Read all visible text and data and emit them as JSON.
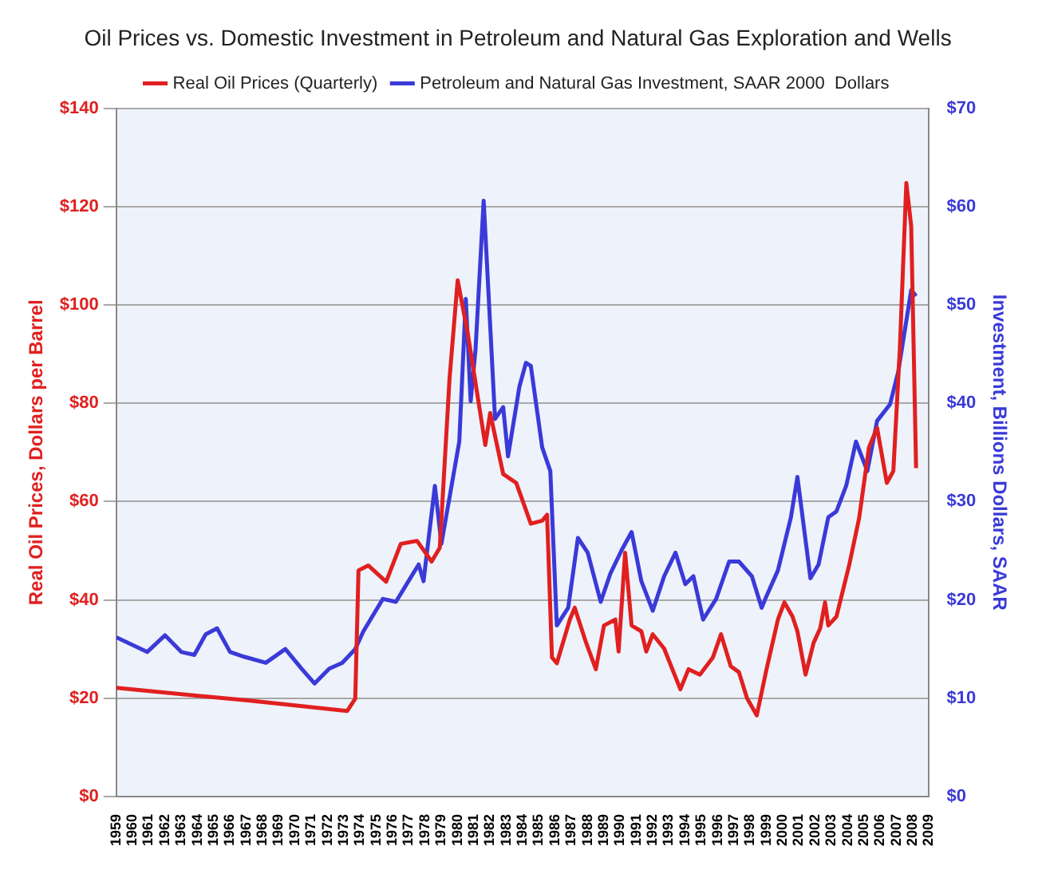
{
  "chart_data": {
    "type": "line",
    "title": "Oil Prices vs. Domestic Investment in Petroleum and Natural Gas Exploration and Wells",
    "ylabel": "Real Oil Prices, Dollars per Barrel",
    "y2label": "Investment, Billions Dollars, SAAR",
    "legend": "top",
    "grid": "y",
    "marker": "none",
    "line_style": "solid",
    "xlim": [
      1959,
      2009
    ],
    "xticks": [
      1959,
      1960,
      1961,
      1962,
      1963,
      1964,
      1965,
      1966,
      1967,
      1968,
      1969,
      1970,
      1971,
      1972,
      1973,
      1974,
      1975,
      1976,
      1977,
      1978,
      1979,
      1980,
      1981,
      1982,
      1983,
      1984,
      1985,
      1986,
      1987,
      1988,
      1989,
      1990,
      1991,
      1992,
      1993,
      1994,
      1995,
      1996,
      1997,
      1998,
      1999,
      2000,
      2001,
      2002,
      2003,
      2004,
      2005,
      2006,
      2007,
      2008,
      2009
    ],
    "ylim": [
      0,
      140
    ],
    "yticks": [
      {
        "value": 0,
        "label": "$0"
      },
      {
        "value": 20,
        "label": "$20"
      },
      {
        "value": 40,
        "label": "$40"
      },
      {
        "value": 60,
        "label": "$60"
      },
      {
        "value": 80,
        "label": "$80"
      },
      {
        "value": 100,
        "label": "$100"
      },
      {
        "value": 120,
        "label": "$120"
      },
      {
        "value": 140,
        "label": "$140"
      }
    ],
    "y2lim": [
      0,
      70
    ],
    "y2ticks": [
      {
        "value": 0,
        "label": "$0"
      },
      {
        "value": 10,
        "label": "$10"
      },
      {
        "value": 20,
        "label": "$20"
      },
      {
        "value": 30,
        "label": "$30"
      },
      {
        "value": 40,
        "label": "$40"
      },
      {
        "value": 50,
        "label": "$50"
      },
      {
        "value": 60,
        "label": "$60"
      },
      {
        "value": 70,
        "label": "$70"
      }
    ],
    "series": [
      {
        "name": "Real Oil Prices (Quarterly)",
        "color": "#e02020",
        "axis": "y",
        "x": [
          1959,
          1967.2,
          1973.2,
          1973.7,
          1973.9,
          1974.5,
          1975.6,
          1976.5,
          1977.5,
          1978.4,
          1978.9,
          1979.5,
          1980.0,
          1980.6,
          1981.7,
          1982.0,
          1982.8,
          1983.6,
          1984.5,
          1985.2,
          1985.5,
          1985.8,
          1986.1,
          1986.9,
          1987.2,
          1987.9,
          1988.5,
          1989.0,
          1989.7,
          1989.9,
          1990.3,
          1990.7,
          1991.3,
          1991.6,
          1992.0,
          1992.7,
          1993.7,
          1994.2,
          1994.9,
          1995.7,
          1996.2,
          1996.8,
          1997.3,
          1997.8,
          1998.4,
          1999.0,
          1999.7,
          2000.1,
          2000.6,
          2000.9,
          2001.4,
          2001.9,
          2002.3,
          2002.6,
          2002.8,
          2003.3,
          2004.1,
          2004.7,
          2005.3,
          2005.8,
          2006.4,
          2006.8,
          2007.2,
          2007.6,
          2007.9,
          2008.2
        ],
        "values": [
          22.1,
          19.5,
          17.4,
          19.9,
          46,
          47,
          43.7,
          51.4,
          52,
          47.8,
          50.6,
          85,
          105,
          94.6,
          71.5,
          78,
          65.6,
          63.8,
          55.5,
          56.1,
          57.3,
          28.3,
          27.1,
          36,
          38.4,
          31.3,
          25.9,
          34.8,
          36,
          29.5,
          49.6,
          34.8,
          33.6,
          29.5,
          33,
          30.1,
          21.8,
          25.9,
          24.8,
          28.3,
          33,
          26.5,
          25.3,
          20,
          16.5,
          25.9,
          36,
          39.5,
          36.6,
          33.6,
          24.8,
          31.3,
          34.2,
          39.5,
          34.8,
          36.6,
          47.3,
          56.7,
          71,
          75,
          63.8,
          66.2,
          91,
          124.8,
          116,
          66.8
        ]
      },
      {
        "name": "Petroleum and Natural Gas Investment, SAAR 2000  Dollars",
        "color": "#3a3ad8",
        "axis": "y2",
        "x": [
          1959,
          1960.9,
          1962.0,
          1963.0,
          1963.8,
          1964.5,
          1965.2,
          1966.0,
          1966.9,
          1968.2,
          1969.4,
          1970.4,
          1971.2,
          1972.1,
          1972.9,
          1973.7,
          1974.2,
          1975.4,
          1976.2,
          1977.6,
          1977.9,
          1978.6,
          1979.0,
          1980.1,
          1980.5,
          1980.8,
          1981.1,
          1981.6,
          1982.3,
          1982.8,
          1983.1,
          1983.8,
          1984.2,
          1984.5,
          1985.2,
          1985.7,
          1986.1,
          1986.8,
          1987.4,
          1988.0,
          1988.8,
          1989.4,
          1990.1,
          1990.7,
          1991.3,
          1992.0,
          1992.7,
          1993.4,
          1994.0,
          1994.5,
          1995.1,
          1995.9,
          1996.7,
          1997.3,
          1998.1,
          1998.7,
          1999.0,
          1999.7,
          2000.5,
          2000.9,
          2001.7,
          2002.2,
          2002.8,
          2003.3,
          2003.9,
          2004.5,
          2005.2,
          2005.8,
          2006.6,
          2007.1,
          2007.9,
          2008.2
        ],
        "values": [
          16.2,
          14.7,
          16.4,
          14.7,
          14.4,
          16.5,
          17.1,
          14.7,
          14.2,
          13.6,
          15,
          13,
          11.5,
          13,
          13.6,
          15,
          16.8,
          20.1,
          19.8,
          23.6,
          21.9,
          31.6,
          25.7,
          36.1,
          50.6,
          40.2,
          45.5,
          60.6,
          38.4,
          39.6,
          34.6,
          41.7,
          44.1,
          43.8,
          35.5,
          33.1,
          17.4,
          19.2,
          26.3,
          24.8,
          19.8,
          22.7,
          25.1,
          26.9,
          21.9,
          18.9,
          22.4,
          24.8,
          21.6,
          22.4,
          18,
          20.1,
          23.9,
          23.9,
          22.4,
          19.2,
          20.4,
          23,
          28.4,
          32.5,
          22.2,
          23.6,
          28.4,
          29,
          31.6,
          36.1,
          33.1,
          38.2,
          39.9,
          43.2,
          51.5,
          50.9
        ]
      }
    ]
  }
}
